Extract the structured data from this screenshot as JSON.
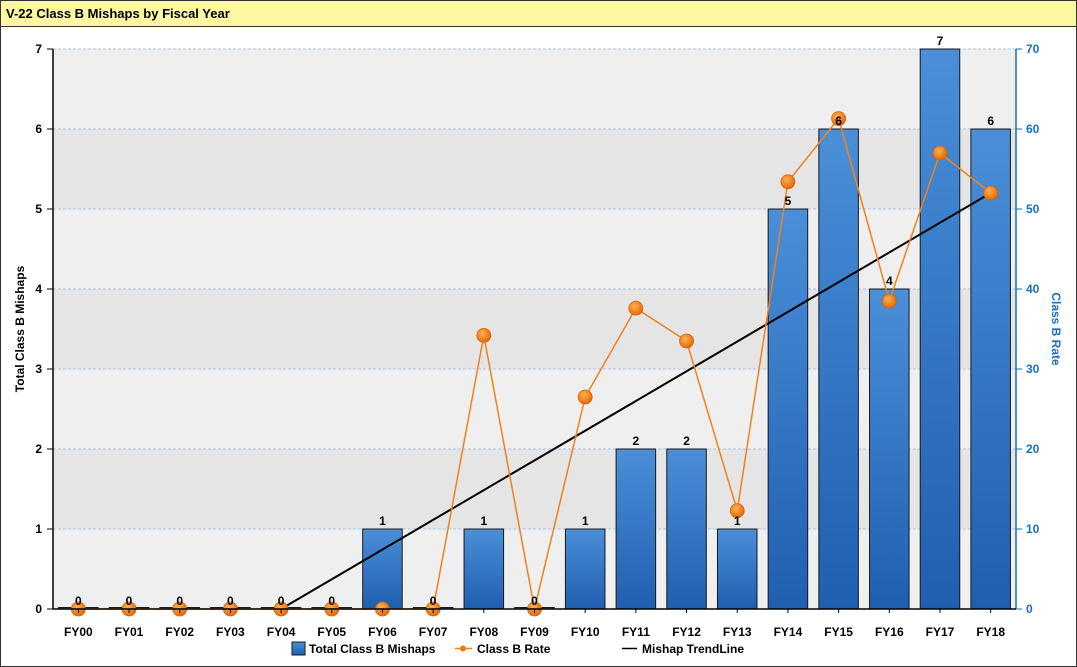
{
  "chart_data": {
    "type": "bar",
    "title": "V-22 Class B Mishaps by Fiscal Year",
    "categories": [
      "FY00",
      "FY01",
      "FY02",
      "FY03",
      "FY04",
      "FY05",
      "FY06",
      "FY07",
      "FY08",
      "FY09",
      "FY10",
      "FY11",
      "FY12",
      "FY13",
      "FY14",
      "FY15",
      "FY16",
      "FY17",
      "FY18"
    ],
    "ylabel": "Total Class B Mishaps",
    "y2label": "Class B Rate",
    "ylim": [
      0,
      7
    ],
    "y2lim": [
      0,
      70
    ],
    "yticks": [
      "0",
      "1",
      "2",
      "3",
      "4",
      "5",
      "6",
      "7"
    ],
    "y2ticks": [
      "0",
      "10",
      "20",
      "30",
      "40",
      "50",
      "60",
      "70"
    ],
    "series": [
      {
        "name": "Total Class B Mishaps",
        "kind": "bar",
        "axis": "left",
        "values": [
          0,
          0,
          0,
          0,
          0,
          0,
          1,
          0,
          1,
          0,
          1,
          2,
          2,
          1,
          5,
          6,
          4,
          7,
          6
        ],
        "labels": [
          "0",
          "0",
          "0",
          "0",
          "0",
          "0",
          "1",
          "0",
          "1",
          "0",
          "1",
          "2",
          "2",
          "1",
          "5",
          "6",
          "4",
          "7",
          "6"
        ]
      },
      {
        "name": "Class B Rate",
        "kind": "line",
        "axis": "right",
        "values": [
          0,
          0,
          0,
          0,
          0,
          0,
          0,
          0,
          34.2,
          0,
          26.5,
          37.6,
          33.5,
          12.3,
          53.4,
          61.3,
          38.5,
          57.0,
          52.0
        ]
      },
      {
        "name": "Mishap TrendLine",
        "kind": "trendline",
        "axis": "left",
        "start_category": "FY04",
        "end_category": "FY18",
        "start_value": 0,
        "end_value": 5.2
      }
    ],
    "grid": true,
    "legend": "bottom",
    "colors": {
      "bar": "#2f78c8",
      "bar_edge": "#1a1a1a",
      "rate_line": "#f0821e",
      "rate_marker": "#ee7711",
      "trend": "#000000",
      "right_axis": "#1a6fc4",
      "title_bg": "#fcf7a0"
    }
  }
}
